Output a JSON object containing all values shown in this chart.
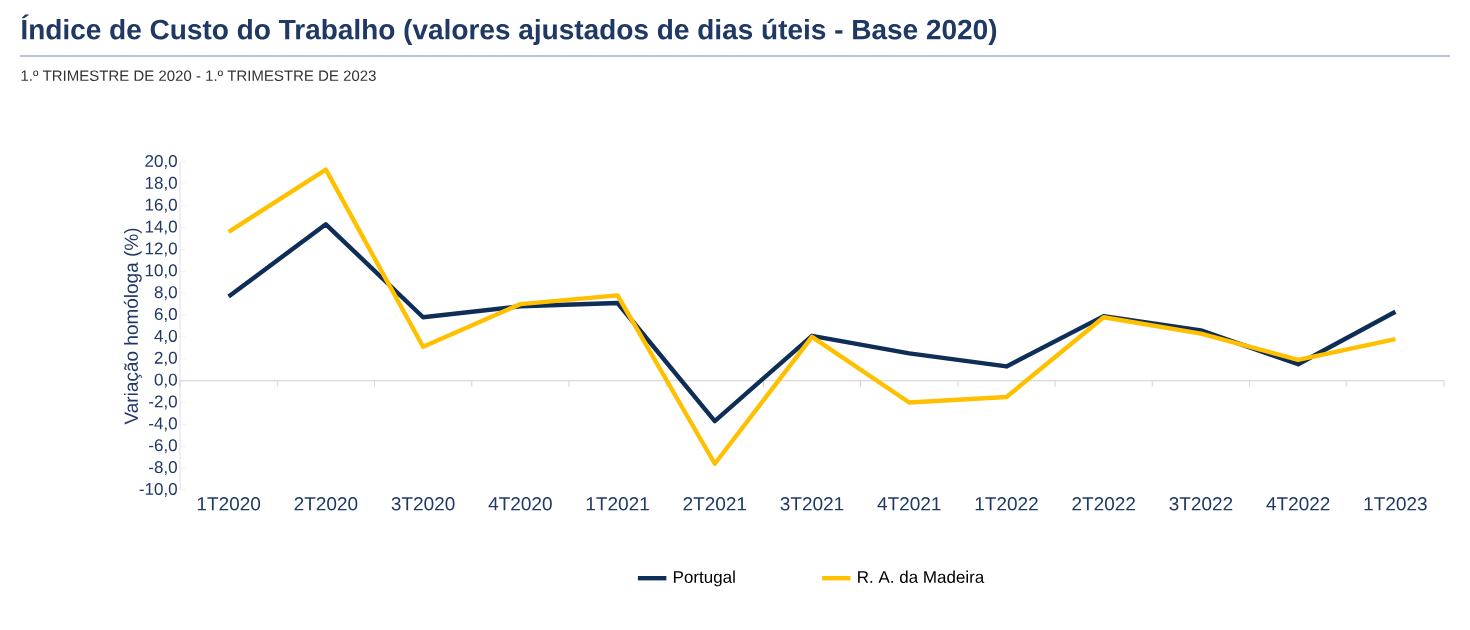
{
  "chart_data": {
    "type": "line",
    "title": "Índice de Custo do Trabalho (valores ajustados de dias úteis - Base 2020)",
    "subtitle": "1.º TRIMESTRE DE 2020 - 1.º TRIMESTRE DE 2023",
    "ylabel": "Variação homóloga (%)",
    "categories": [
      "1T2020",
      "2T2020",
      "3T2020",
      "4T2020",
      "1T2021",
      "2T2021",
      "3T2021",
      "4T2021",
      "1T2022",
      "2T2022",
      "3T2022",
      "4T2022",
      "1T2023"
    ],
    "series": [
      {
        "name": "Portugal",
        "color": "#0e2d57",
        "values": [
          7.7,
          14.3,
          5.8,
          6.8,
          7.1,
          -3.7,
          4.1,
          2.5,
          1.3,
          5.9,
          4.6,
          1.5,
          6.3
        ]
      },
      {
        "name": "R. A. da Madeira",
        "color": "#ffc000",
        "values": [
          13.6,
          19.3,
          3.1,
          7.0,
          7.8,
          -7.6,
          4.0,
          -2.0,
          -1.5,
          5.8,
          4.3,
          1.9,
          3.8
        ]
      }
    ],
    "ylim": [
      -10,
      20
    ],
    "yticks": [
      {
        "value": -10,
        "label": "-10,0"
      },
      {
        "value": -8,
        "label": "-8,0"
      },
      {
        "value": -6,
        "label": "-6,0"
      },
      {
        "value": -4,
        "label": "-4,0"
      },
      {
        "value": -2,
        "label": "-2,0"
      },
      {
        "value": 0,
        "label": "0,0"
      },
      {
        "value": 2,
        "label": "2,0"
      },
      {
        "value": 4,
        "label": "4,0"
      },
      {
        "value": 6,
        "label": "6,0"
      },
      {
        "value": 8,
        "label": "8,0"
      },
      {
        "value": 10,
        "label": "10,0"
      },
      {
        "value": 12,
        "label": "12,0"
      },
      {
        "value": 14,
        "label": "14,0"
      },
      {
        "value": 16,
        "label": "16,0"
      },
      {
        "value": 18,
        "label": "18,0"
      },
      {
        "value": 20,
        "label": "20,0"
      }
    ],
    "legend": "bottom",
    "marker": "none",
    "line_style": "solid"
  }
}
